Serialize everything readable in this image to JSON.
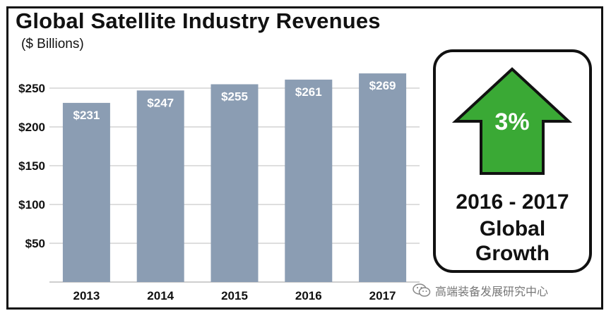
{
  "chart_data": {
    "type": "bar",
    "title": "Global Satellite Industry Revenues",
    "subtitle": "($ Billions)",
    "categories": [
      "2013",
      "2014",
      "2015",
      "2016",
      "2017"
    ],
    "values": [
      231,
      247,
      255,
      261,
      269
    ],
    "data_labels": [
      "$231",
      "$247",
      "$255",
      "$261",
      "$269"
    ],
    "y_ticks": [
      50,
      100,
      150,
      200,
      250
    ],
    "y_tick_labels": [
      "$50",
      "$100",
      "$150",
      "$200",
      "$250"
    ],
    "ylim": [
      0,
      280
    ],
    "grid": true,
    "bar_color": "#8b9db3",
    "xlabel": "",
    "ylabel": ""
  },
  "growth_panel": {
    "percent": "3%",
    "line1": "2016 - 2017",
    "line2": "Global",
    "line3": "Growth",
    "arrow_color": "#3aa935"
  },
  "watermark": {
    "text": "高端装备发展研究中心"
  }
}
